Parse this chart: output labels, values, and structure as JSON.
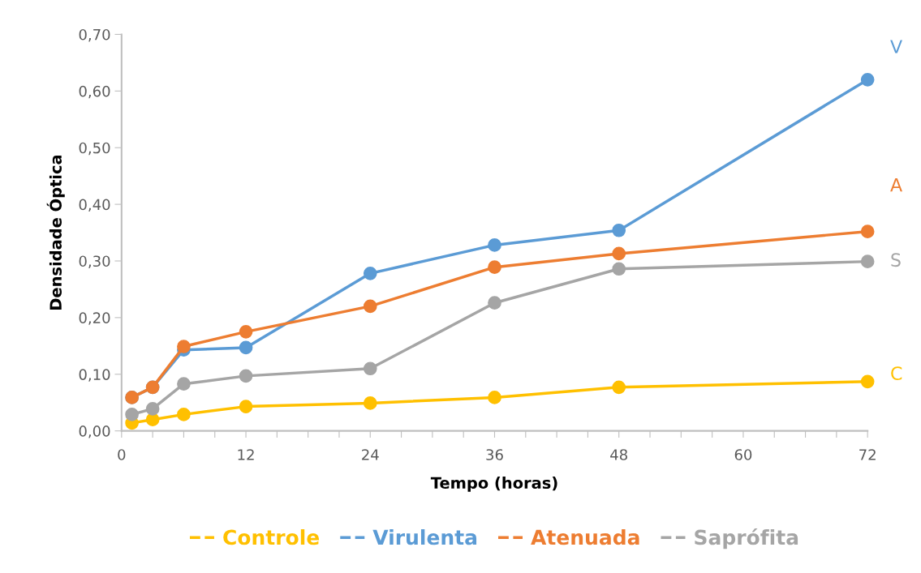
{
  "chart_data": {
    "type": "line",
    "xlabel": "Tempo (horas)",
    "ylabel": "Densidade Óptica",
    "series": [
      {
        "name": "Controle",
        "color": "#ffc000",
        "x": [
          1,
          3,
          6,
          12,
          24,
          36,
          48,
          72
        ],
        "values": [
          0.014,
          0.02,
          0.029,
          0.043,
          0.049,
          0.059,
          0.077,
          0.087
        ]
      },
      {
        "name": "Virulenta",
        "color": "#5b9bd5",
        "x": [
          1,
          3,
          6,
          12,
          24,
          36,
          48,
          72
        ],
        "values": [
          0.059,
          0.077,
          0.143,
          0.147,
          0.278,
          0.328,
          0.354,
          0.62
        ]
      },
      {
        "name": "Atenuada",
        "color": "#ed7d31",
        "x": [
          1,
          3,
          6,
          12,
          24,
          36,
          48,
          72
        ],
        "values": [
          0.059,
          0.077,
          0.149,
          0.175,
          0.22,
          0.289,
          0.313,
          0.352
        ]
      },
      {
        "name": "Saprófita",
        "color": "#a5a5a5",
        "x": [
          1,
          3,
          6,
          12,
          24,
          36,
          48,
          72
        ],
        "values": [
          0.029,
          0.039,
          0.083,
          0.097,
          0.11,
          0.226,
          0.286,
          0.299
        ]
      }
    ],
    "xlim": [
      0,
      72
    ],
    "xticks": [
      0,
      {
        "value": 3,
        "label": null
      },
      {
        "value": 6,
        "label": null
      },
      {
        "value": 9,
        "label": null
      },
      12,
      {
        "value": 15,
        "label": null
      },
      {
        "value": 18,
        "label": null
      },
      {
        "value": 21,
        "label": null
      },
      24,
      {
        "value": 27,
        "label": null
      },
      {
        "value": 30,
        "label": null
      },
      {
        "value": 33,
        "label": null
      },
      36,
      {
        "value": 39,
        "label": null
      },
      {
        "value": 42,
        "label": null
      },
      {
        "value": 45,
        "label": null
      },
      48,
      {
        "value": 51,
        "label": null
      },
      {
        "value": 54,
        "label": null
      },
      {
        "value": 57,
        "label": null
      },
      60,
      {
        "value": 63,
        "label": null
      },
      {
        "value": 66,
        "label": null
      },
      {
        "value": 69,
        "label": null
      },
      72
    ],
    "ylim": [
      0,
      0.7
    ],
    "yticks": [
      {
        "value": 0,
        "label": "0,00"
      },
      {
        "value": 0.1,
        "label": "0,10"
      },
      {
        "value": 0.2,
        "label": "0,20"
      },
      {
        "value": 0.3,
        "label": "0,30"
      },
      {
        "value": 0.4,
        "label": "0,40"
      },
      {
        "value": 0.5,
        "label": "0,50"
      },
      {
        "value": 0.6,
        "label": "0,60"
      },
      {
        "value": 0.7,
        "label": "0,70"
      }
    ],
    "annotations": [
      "V",
      "A",
      "S",
      "C"
    ],
    "marker": "circle",
    "line_style": "solid",
    "grid": false,
    "legend": "bottom"
  }
}
